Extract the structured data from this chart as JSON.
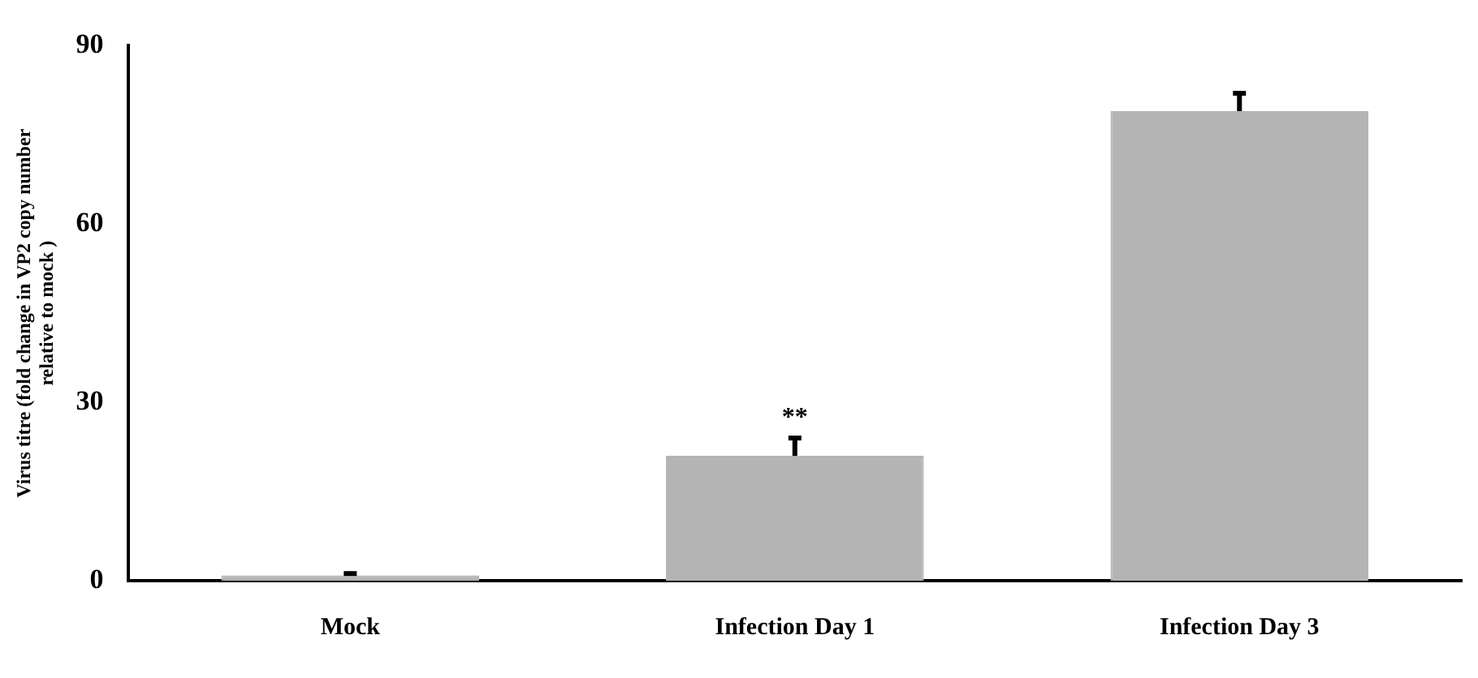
{
  "chart_data": {
    "type": "bar",
    "ylabel": "Virus titre (fold change in VP2 copy number relative to mock )",
    "categories": [
      "Mock",
      "Infection Day 1",
      "Infection Day 3"
    ],
    "values": [
      0.9,
      21,
      79
    ],
    "errors": [
      [
        0.9,
        1.2
      ],
      [
        21,
        24
      ],
      [
        79,
        82
      ]
    ],
    "color": "#b4b4b4",
    "ylim": [
      0,
      90
    ],
    "yticks": [
      0,
      30,
      60,
      90
    ],
    "grid": false,
    "legend": false,
    "annotations": [
      "**"
    ]
  }
}
